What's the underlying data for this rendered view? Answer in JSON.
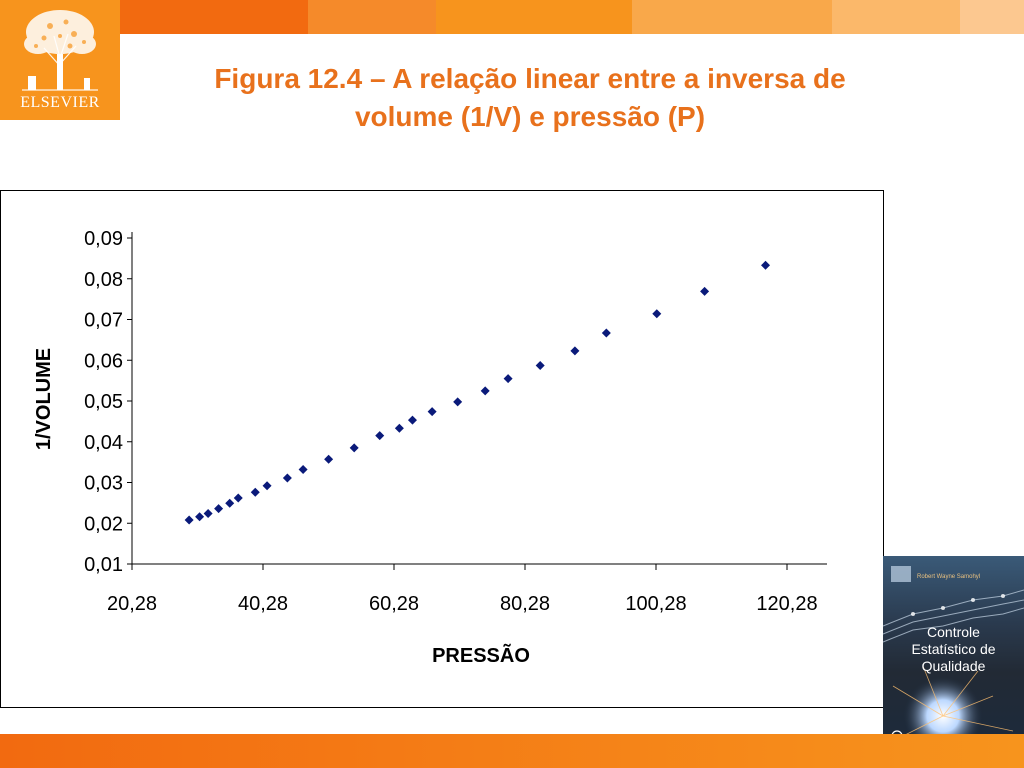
{
  "header": {
    "logo_text": "ELSEVIER",
    "title_line1": "Figura 12.4 – A relação linear entre a inversa de",
    "title_line2": "volume (1/V) e pressão (P)"
  },
  "book": {
    "author": "Robert Wayne Samohyl",
    "title_line1": "Controle",
    "title_line2": "Estatístico de",
    "title_line3": "Qualidade"
  },
  "colors": {
    "accent": "#f7941d",
    "title": "#e8711c",
    "marker": "#0a1a7a"
  },
  "chart_data": {
    "type": "scatter",
    "xlabel": "PRESSÃO",
    "ylabel": "1/VOLUME",
    "xlim": [
      20.28,
      120.28
    ],
    "ylim": [
      0.01,
      0.09
    ],
    "x_ticks": [
      "20,28",
      "40,28",
      "60,28",
      "80,28",
      "100,28",
      "120,28"
    ],
    "y_ticks": [
      "0,01",
      "0,02",
      "0,03",
      "0,04",
      "0,05",
      "0,06",
      "0,07",
      "0,08",
      "0,09"
    ],
    "grid": false,
    "legend": "none",
    "series": [
      {
        "marker": "diamond",
        "x": [
          29.0,
          30.6,
          31.9,
          33.5,
          35.2,
          36.5,
          39.1,
          40.9,
          44.0,
          46.4,
          50.3,
          54.2,
          58.1,
          61.1,
          63.1,
          66.1,
          70.0,
          74.2,
          77.7,
          82.6,
          87.9,
          92.7,
          100.4,
          107.7,
          117.0
        ],
        "y": [
          0.0208,
          0.0216,
          0.0224,
          0.0236,
          0.0249,
          0.0262,
          0.0276,
          0.0292,
          0.0311,
          0.0332,
          0.0357,
          0.0385,
          0.0415,
          0.0433,
          0.0453,
          0.0474,
          0.0498,
          0.0525,
          0.0555,
          0.0587,
          0.0623,
          0.0667,
          0.0714,
          0.0769,
          0.0833
        ]
      }
    ]
  }
}
